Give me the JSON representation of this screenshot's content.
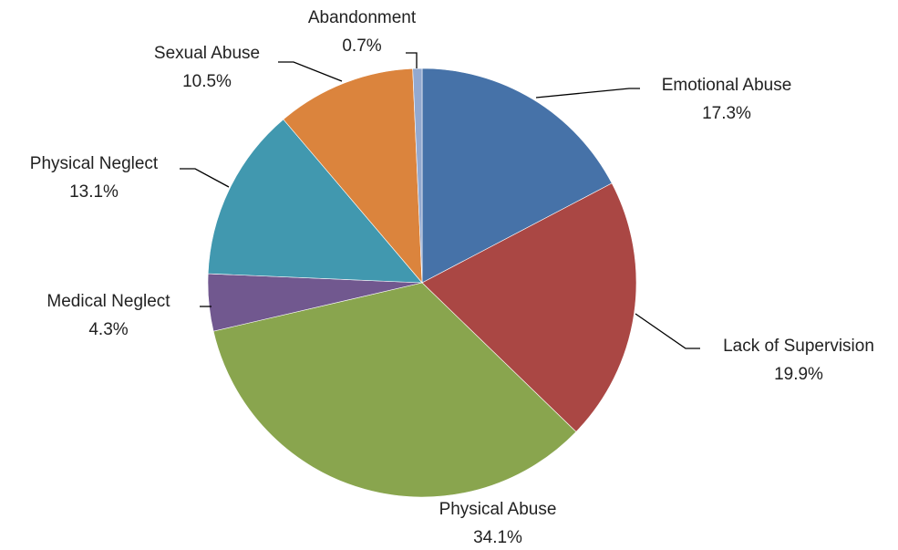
{
  "chart_data": {
    "type": "pie",
    "title": "",
    "slices": [
      {
        "label": "Emotional Abuse",
        "value": 17.3,
        "value_label": "17.3%",
        "color": "#4672A8"
      },
      {
        "label": "Lack of Supervision",
        "value": 19.9,
        "value_label": "19.9%",
        "color": "#AA4744"
      },
      {
        "label": "Physical Abuse",
        "value": 34.1,
        "value_label": "34.1%",
        "color": "#89A54E"
      },
      {
        "label": "Medical Neglect",
        "value": 4.3,
        "value_label": "4.3%",
        "color": "#71588F"
      },
      {
        "label": "Physical Neglect",
        "value": 13.1,
        "value_label": "13.1%",
        "color": "#4198AF"
      },
      {
        "label": "Sexual Abuse",
        "value": 10.5,
        "value_label": "10.5%",
        "color": "#DB843D"
      },
      {
        "label": "Abandonment",
        "value": 0.7,
        "value_label": "0.7%",
        "color": "#93A9CF"
      }
    ],
    "start_angle": "12 o'clock",
    "direction": "clockwise",
    "legend": "none",
    "labels": "outside with leader lines"
  }
}
